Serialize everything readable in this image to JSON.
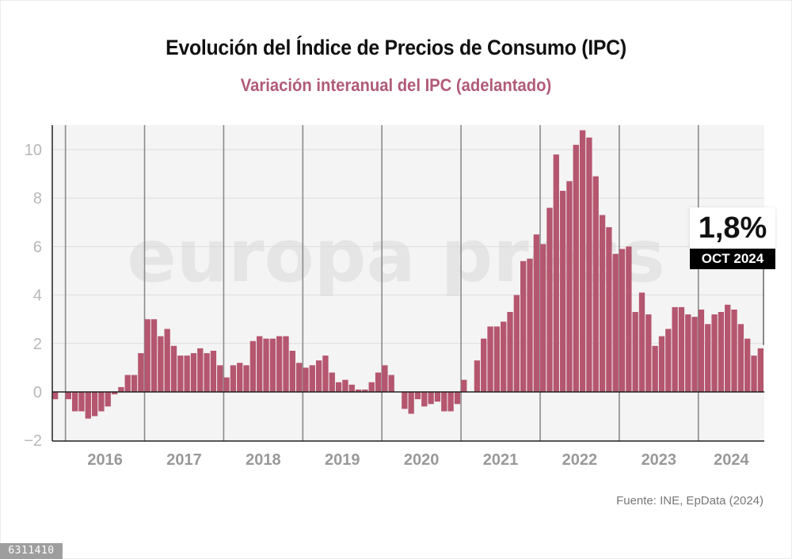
{
  "header": {
    "title": "Evolución del Índice de Precios de Consumo (IPC)",
    "subtitle": "Variación interanual del IPC (adelantado)"
  },
  "footer": {
    "source": "Fuente: INE, EpData (2024)",
    "image_id": "6311410"
  },
  "watermark": "europa press",
  "callout": {
    "value": "1,8%",
    "date": "OCT 2024"
  },
  "colors": {
    "bar": "#b5566f",
    "bar_divider": "#e8a9ba",
    "plot_bg": "#f4f4f4",
    "year_line": "#8a8a8a",
    "grid": "#dddddd",
    "subtitle": "#b05a77"
  },
  "chart_data": {
    "type": "bar",
    "title": "Evolución del Índice de Precios de Consumo (IPC)",
    "subtitle": "Variación interanual del IPC (adelantado)",
    "xlabel": "",
    "ylabel": "",
    "ylim": [
      -2,
      11
    ],
    "yticks": [
      -2,
      0,
      2,
      4,
      6,
      8,
      10
    ],
    "ytick_labels": [
      "−2",
      "0",
      "2",
      "4",
      "6",
      "8",
      "10"
    ],
    "grid": true,
    "start_month": "2015-11",
    "x_labels": [
      "2016",
      "2017",
      "2018",
      "2019",
      "2020",
      "2021",
      "2022",
      "2023",
      "2024"
    ],
    "series": [
      {
        "name": "IPC variación interanual (%)",
        "values": [
          -0.3,
          0.0,
          -0.3,
          -0.8,
          -0.8,
          -1.1,
          -1.0,
          -0.8,
          -0.6,
          -0.1,
          0.2,
          0.7,
          0.7,
          1.6,
          3.0,
          3.0,
          2.3,
          2.6,
          1.9,
          1.5,
          1.5,
          1.6,
          1.8,
          1.6,
          1.7,
          1.1,
          0.6,
          1.1,
          1.2,
          1.1,
          2.1,
          2.3,
          2.2,
          2.2,
          2.3,
          2.3,
          1.7,
          1.2,
          1.0,
          1.1,
          1.3,
          1.5,
          0.8,
          0.4,
          0.5,
          0.3,
          0.1,
          0.1,
          0.4,
          0.8,
          1.1,
          0.7,
          0.0,
          -0.7,
          -0.9,
          -0.3,
          -0.6,
          -0.5,
          -0.4,
          -0.8,
          -0.8,
          -0.5,
          0.5,
          0.0,
          1.3,
          2.2,
          2.7,
          2.7,
          2.9,
          3.3,
          4.0,
          5.4,
          5.5,
          6.5,
          6.1,
          7.6,
          9.8,
          8.3,
          8.7,
          10.2,
          10.8,
          10.5,
          8.9,
          7.3,
          6.8,
          5.7,
          5.9,
          6.0,
          3.3,
          4.1,
          3.2,
          1.9,
          2.3,
          2.6,
          3.5,
          3.5,
          3.2,
          3.1,
          3.4,
          2.8,
          3.2,
          3.3,
          3.6,
          3.4,
          2.8,
          2.2,
          1.5,
          1.8
        ]
      }
    ],
    "annotations": [
      {
        "label": "1,8%",
        "sublabel": "OCT 2024",
        "x": "2024-10",
        "y": 1.8
      }
    ]
  }
}
